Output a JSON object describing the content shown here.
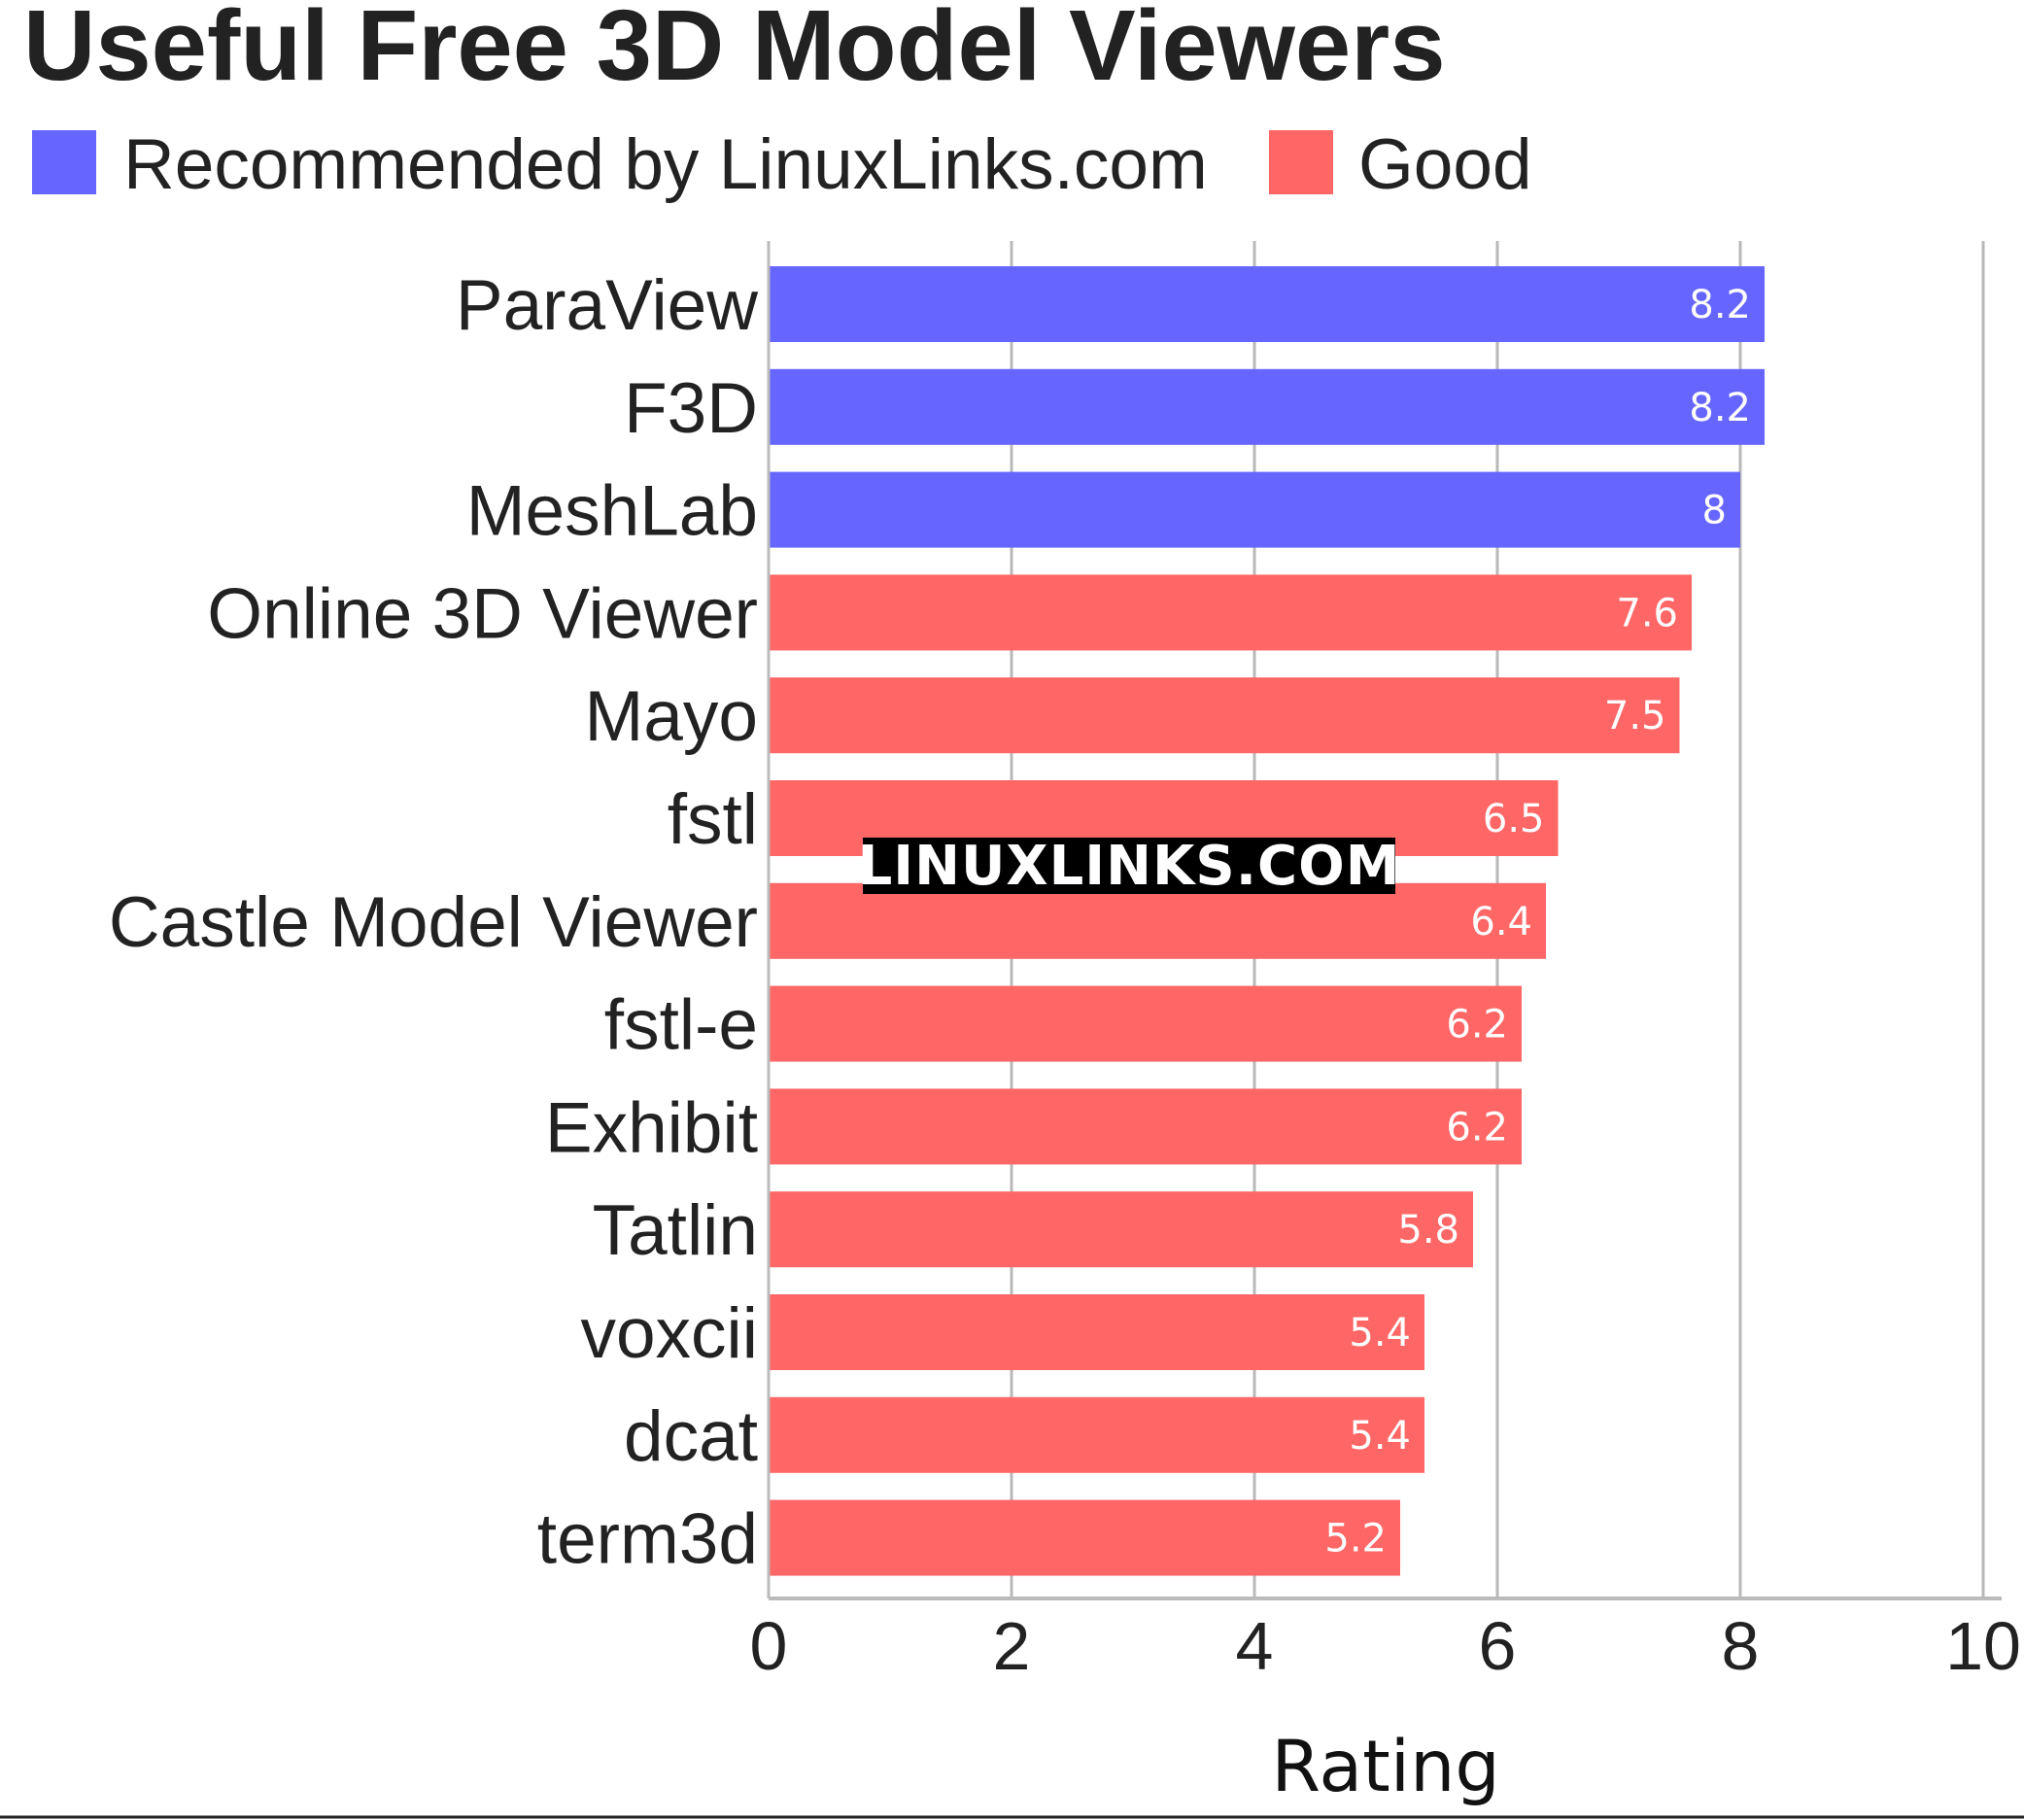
{
  "chart_data": {
    "type": "bar",
    "orientation": "horizontal",
    "title": "Useful Free 3D Model Viewers",
    "xlabel": "Rating",
    "ylabel": "",
    "xlim": [
      0,
      10
    ],
    "xticks": [
      0,
      2,
      4,
      6,
      8,
      10
    ],
    "grid": true,
    "legend_position": "top-left",
    "legend": [
      {
        "name": "Recommended by LinuxLinks.com",
        "color": "#6666ff"
      },
      {
        "name": "Good",
        "color": "#ff6666"
      }
    ],
    "categories": [
      "ParaView",
      "F3D",
      "MeshLab",
      "Online 3D Viewer",
      "Mayo",
      "fstl",
      "Castle Model Viewer",
      "fstl-e",
      "Exhibit",
      "Tatlin",
      "voxcii",
      "dcat",
      "term3d"
    ],
    "values": [
      8.2,
      8.2,
      8,
      7.6,
      7.5,
      6.5,
      6.4,
      6.2,
      6.2,
      5.8,
      5.4,
      5.4,
      5.2
    ],
    "value_labels": [
      "8.2",
      "8.2",
      "8",
      "7.6",
      "7.5",
      "6.5",
      "6.4",
      "6.2",
      "6.2",
      "5.8",
      "5.4",
      "5.4",
      "5.2"
    ],
    "groups": [
      "Recommended by LinuxLinks.com",
      "Recommended by LinuxLinks.com",
      "Recommended by LinuxLinks.com",
      "Good",
      "Good",
      "Good",
      "Good",
      "Good",
      "Good",
      "Good",
      "Good",
      "Good",
      "Good"
    ]
  },
  "watermark": "LINUXLINKS.COM"
}
